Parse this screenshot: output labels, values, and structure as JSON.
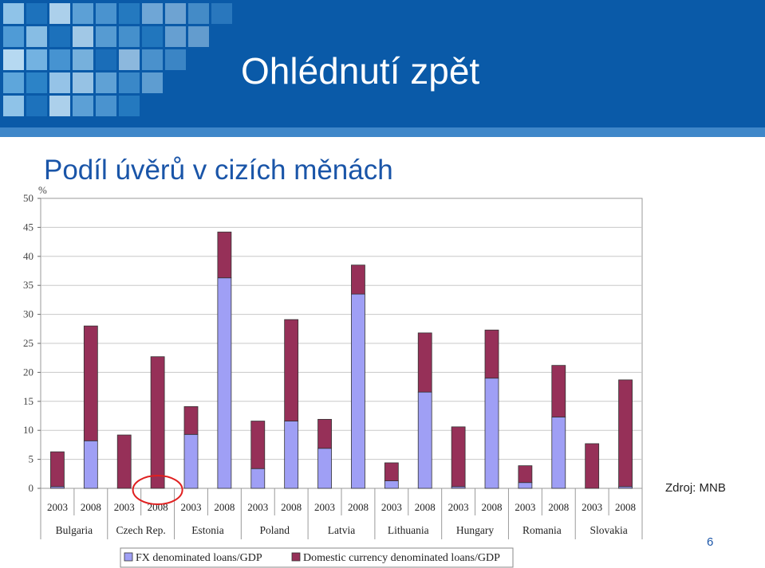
{
  "slide": {
    "title": "Ohlédnutí zpět",
    "subtitle": "Podíl úvěrů v cizích měnách",
    "source": "Zdroj: MNB",
    "page_number": "6"
  },
  "colors": {
    "header_bg": "#0a5aa8",
    "fx_fill": "#9f9ff5",
    "domestic_fill": "#963058",
    "highlight_circle": "#e02020"
  },
  "chart_data": {
    "type": "bar",
    "stacked": true,
    "ylabel": "%",
    "ylim": [
      0,
      50
    ],
    "yticks": [
      0,
      5,
      10,
      15,
      20,
      25,
      30,
      35,
      40,
      45,
      50
    ],
    "grid": true,
    "legend_position": "bottom",
    "countries": [
      "Bulgaria",
      "Czech Rep.",
      "Estonia",
      "Poland",
      "Latvia",
      "Lithuania",
      "Hungary",
      "Romania",
      "Slovakia"
    ],
    "years": [
      "2003",
      "2008"
    ],
    "highlight": {
      "country": "Czech Rep.",
      "year": "2008"
    },
    "series": [
      {
        "name": "FX denominated loans/GDP",
        "values": [
          0.3,
          8.2,
          0,
          0,
          9.3,
          36.3,
          3.4,
          11.6,
          6.9,
          33.5,
          1.3,
          16.6,
          0.3,
          19.0,
          1.0,
          12.3,
          0,
          0.3
        ]
      },
      {
        "name": "Domestic currency denominated loans/GDP",
        "values": [
          6.0,
          19.8,
          9.2,
          22.7,
          4.8,
          7.9,
          8.2,
          17.5,
          5.0,
          5.0,
          3.1,
          10.2,
          10.3,
          8.3,
          2.9,
          8.9,
          7.7,
          18.4
        ]
      }
    ]
  }
}
